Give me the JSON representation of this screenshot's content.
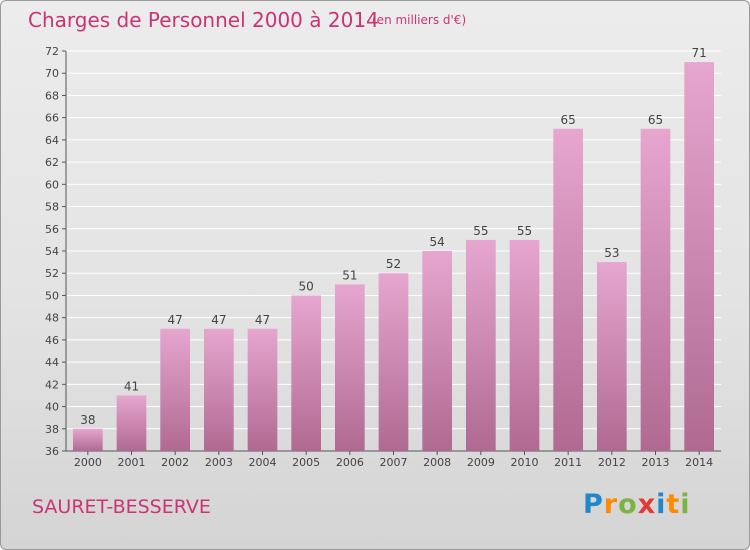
{
  "header": {
    "title": "Charges de Personnel 2000 à 2014",
    "subtitle": "(en milliers d'€)"
  },
  "footer": {
    "location": "SAURET-BESSERVE",
    "logo_text": "Proxiti",
    "logo_colors": [
      "#1e88c8",
      "#ff8a00",
      "#7cb342",
      "#e53935",
      "#1e88c8",
      "#ff8a00",
      "#7cb342"
    ]
  },
  "chart_data": {
    "type": "bar",
    "title": "Charges de Personnel 2000 à 2014",
    "subtitle": "(en milliers d'€)",
    "xlabel": "",
    "ylabel": "",
    "categories": [
      "2000",
      "2001",
      "2002",
      "2003",
      "2004",
      "2005",
      "2006",
      "2007",
      "2008",
      "2009",
      "2010",
      "2011",
      "2012",
      "2013",
      "2014"
    ],
    "values": [
      38,
      41,
      47,
      47,
      47,
      50,
      51,
      52,
      54,
      55,
      55,
      65,
      53,
      65,
      71
    ],
    "ylim": [
      36,
      72
    ],
    "yticks": [
      36,
      38,
      40,
      42,
      44,
      46,
      48,
      50,
      52,
      54,
      56,
      58,
      60,
      62,
      64,
      66,
      68,
      70,
      72
    ],
    "grid": true,
    "legend": "none",
    "bar_color_top": "#e6a6cf",
    "bar_color_bottom": "#b06a92",
    "grid_color": "#ffffff"
  }
}
